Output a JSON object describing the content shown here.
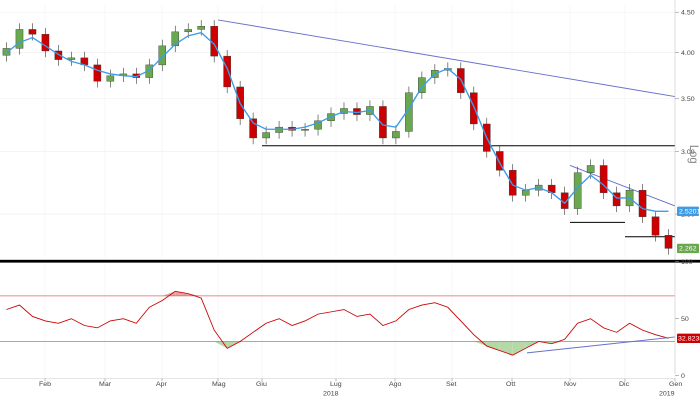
{
  "chart_data": [
    {
      "type": "candlestick",
      "scale": "log",
      "ylim": [
        2.2,
        4.6
      ],
      "y_ticks": [
        "4.50",
        "4.00",
        "3.50",
        "3.00",
        "2.50"
      ],
      "y_tick_values": [
        4.5,
        4.0,
        3.5,
        3.0,
        2.5
      ],
      "axis_label": "Log",
      "x_months": [
        "Feb",
        "Mar",
        "Apr",
        "Mag",
        "Giu",
        "Lug",
        "Ago",
        "Set",
        "Ott",
        "Nov",
        "Dic",
        "Gen"
      ],
      "x_years": [
        "2018",
        "2019"
      ],
      "last_prices": {
        "moving_average": "2.5201",
        "close": "2.262"
      },
      "colors": {
        "up": "#6aa84f",
        "down": "#cc0000",
        "moving_average": "#3d9be9",
        "trendline": "#6670c9",
        "support": "#000000",
        "ma_badge": "#3d9be9",
        "close_badge": "#6aa84f"
      },
      "candles_weekly": [
        4.05,
        4.28,
        4.22,
        4.02,
        3.92,
        3.94,
        3.86,
        3.68,
        3.74,
        3.76,
        3.72,
        3.86,
        4.08,
        4.25,
        4.28,
        4.32,
        3.96,
        3.62,
        3.3,
        3.12,
        3.17,
        3.22,
        3.19,
        3.2,
        3.28,
        3.35,
        3.4,
        3.34,
        3.42,
        3.12,
        3.18,
        3.56,
        3.72,
        3.8,
        3.82,
        3.56,
        3.25,
        3.0,
        2.84,
        2.64,
        2.68,
        2.72,
        2.66,
        2.54,
        2.82,
        2.88,
        2.66,
        2.56,
        2.68,
        2.48,
        2.35,
        2.262
      ],
      "moving_average_weekly": [
        4.0,
        4.12,
        4.18,
        4.08,
        3.98,
        3.9,
        3.86,
        3.8,
        3.76,
        3.74,
        3.73,
        3.8,
        3.95,
        4.1,
        4.2,
        4.24,
        4.1,
        3.82,
        3.45,
        3.26,
        3.2,
        3.2,
        3.2,
        3.22,
        3.26,
        3.32,
        3.37,
        3.36,
        3.38,
        3.24,
        3.22,
        3.4,
        3.62,
        3.76,
        3.82,
        3.7,
        3.42,
        3.12,
        2.9,
        2.72,
        2.68,
        2.7,
        2.66,
        2.58,
        2.7,
        2.8,
        2.72,
        2.62,
        2.62,
        2.54,
        2.52,
        2.5201
      ],
      "trendlines": [
        {
          "from": [
            "Mag",
            4.4
          ],
          "to": [
            "Gen",
            3.52
          ]
        },
        {
          "from": [
            "Nov",
            2.88
          ],
          "to": [
            "Gen",
            2.56
          ]
        }
      ],
      "support_lines": [
        {
          "level": 3.05,
          "from": "Giu",
          "to": "Gen"
        },
        {
          "level": 2.44,
          "from": "Nov",
          "to": "Dic"
        },
        {
          "level": 2.34,
          "from": "Dic",
          "to": "Gen"
        }
      ]
    },
    {
      "type": "line",
      "name_visible": false,
      "ylim": [
        0,
        100
      ],
      "y_ticks": [
        "100",
        "50",
        "0"
      ],
      "y_tick_values": [
        100,
        50,
        0
      ],
      "upper_band": 70,
      "lower_band": 30,
      "last_value": "32.8238",
      "colors": {
        "line": "#cc0000",
        "upper_band": "#e06666",
        "lower_band": "#6aa84f",
        "fill_high": "#e6a3a3",
        "fill_low": "#b6d7a8",
        "badge": "#cc0000"
      },
      "values_weekly": [
        58,
        62,
        52,
        48,
        46,
        50,
        44,
        42,
        48,
        50,
        46,
        60,
        66,
        74,
        72,
        68,
        40,
        24,
        30,
        38,
        46,
        50,
        44,
        48,
        54,
        56,
        58,
        52,
        54,
        44,
        48,
        58,
        62,
        64,
        60,
        48,
        36,
        26,
        22,
        18,
        24,
        30,
        28,
        32,
        46,
        50,
        42,
        38,
        46,
        40,
        36,
        32.8238
      ],
      "trendline": {
        "from": [
          "Ott",
          20
        ],
        "to": [
          "Gen",
          34
        ]
      }
    }
  ]
}
